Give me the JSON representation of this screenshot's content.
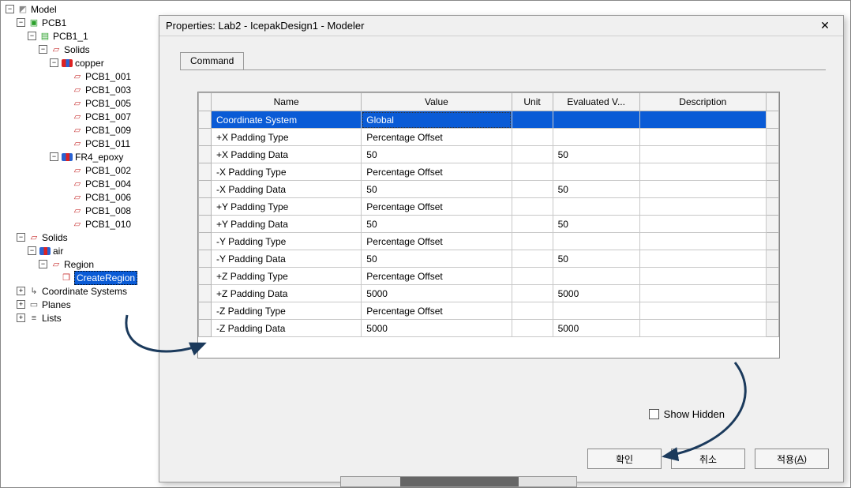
{
  "tree": {
    "root": "Model",
    "pcb1": "PCB1",
    "pcb1_1": "PCB1_1",
    "solids": "Solids",
    "copper": "copper",
    "copper_items": [
      "PCB1_001",
      "PCB1_003",
      "PCB1_005",
      "PCB1_007",
      "PCB1_009",
      "PCB1_011"
    ],
    "fr4": "FR4_epoxy",
    "fr4_items": [
      "PCB1_002",
      "PCB1_004",
      "PCB1_006",
      "PCB1_008",
      "PCB1_010"
    ],
    "solids2": "Solids",
    "air": "air",
    "region": "Region",
    "create_region": "CreateRegion",
    "coord": "Coordinate Systems",
    "planes": "Planes",
    "lists": "Lists"
  },
  "dialog": {
    "title": "Properties: Lab2 - IcepakDesign1 - Modeler",
    "tab": "Command",
    "columns": [
      "Name",
      "Value",
      "Unit",
      "Evaluated V...",
      "Description"
    ],
    "rows": [
      {
        "name": "Coordinate System",
        "value": "Global",
        "unit": "",
        "eval": "",
        "desc": "",
        "selected": true
      },
      {
        "name": "+X Padding Type",
        "value": "Percentage Offset",
        "unit": "",
        "eval": "",
        "desc": ""
      },
      {
        "name": "+X Padding Data",
        "value": "50",
        "unit": "",
        "eval": "50",
        "desc": ""
      },
      {
        "name": "-X Padding Type",
        "value": "Percentage Offset",
        "unit": "",
        "eval": "",
        "desc": ""
      },
      {
        "name": "-X Padding Data",
        "value": "50",
        "unit": "",
        "eval": "50",
        "desc": ""
      },
      {
        "name": "+Y Padding Type",
        "value": "Percentage Offset",
        "unit": "",
        "eval": "",
        "desc": ""
      },
      {
        "name": "+Y Padding Data",
        "value": "50",
        "unit": "",
        "eval": "50",
        "desc": ""
      },
      {
        "name": "-Y Padding Type",
        "value": "Percentage Offset",
        "unit": "",
        "eval": "",
        "desc": ""
      },
      {
        "name": "-Y Padding Data",
        "value": "50",
        "unit": "",
        "eval": "50",
        "desc": ""
      },
      {
        "name": "+Z Padding Type",
        "value": "Percentage Offset",
        "unit": "",
        "eval": "",
        "desc": ""
      },
      {
        "name": "+Z Padding Data",
        "value": "5000",
        "unit": "",
        "eval": "5000",
        "desc": ""
      },
      {
        "name": "-Z Padding Type",
        "value": "Percentage Offset",
        "unit": "",
        "eval": "",
        "desc": ""
      },
      {
        "name": "-Z Padding Data",
        "value": "5000",
        "unit": "",
        "eval": "5000",
        "desc": ""
      }
    ],
    "show_hidden": "Show Hidden",
    "buttons": {
      "ok": "확인",
      "cancel": "취소",
      "apply": "적용(",
      "apply_u": "A",
      "apply_tail": ")"
    },
    "col_widths": {
      "rowhdr": 16,
      "name": 190,
      "value": 190,
      "unit": 52,
      "eval": 110,
      "desc": 160,
      "tail": 12
    },
    "colors": {
      "sel_bg": "#0a5bd6",
      "sel_fg": "#ffffff",
      "border": "#9a9a9a",
      "header_bg": "#f3f3f3"
    }
  }
}
